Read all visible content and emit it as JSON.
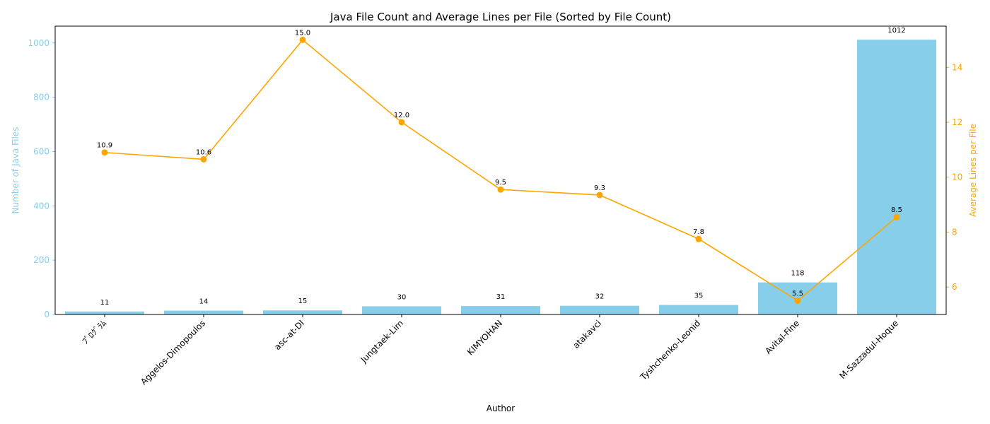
{
  "chart_data": {
    "type": "bar",
    "title": "Java File Count and Average Lines per File (Sorted by File Count)",
    "xlabel": "Author",
    "ylabel_left": "Number of Java Files",
    "ylabel_right": "Average Lines per File",
    "categories": [
      "ﾌﾟﾛｸﾞﾗﾑ",
      "Aggelos-Dimopoulos",
      "asc-at-DI",
      "Jungtaek-Lim",
      "KIMYOHAN",
      "atakavci",
      "Tyshchenko-Leonid",
      "Avital-Fine",
      "M-Sazzadul-Hoque"
    ],
    "series": [
      {
        "kind": "bar",
        "axis": "left",
        "color": "#87ceeb",
        "values": [
          11,
          14,
          15,
          30,
          31,
          32,
          35,
          118,
          1012
        ],
        "labels": [
          "11",
          "14",
          "15",
          "30",
          "31",
          "32",
          "35",
          "118",
          "1012"
        ]
      },
      {
        "kind": "line",
        "axis": "right",
        "color": "#ffa500",
        "values": [
          10.9,
          10.65,
          15.0,
          12.0,
          9.55,
          9.35,
          7.75,
          5.5,
          8.55
        ],
        "labels": [
          "10.9",
          "10.6",
          "15.0",
          "12.0",
          "9.5",
          "9.3",
          "7.8",
          "5.5",
          "8.5"
        ]
      }
    ],
    "ylim_left": [
      0,
      1062
    ],
    "yticks_left": [
      "0",
      "200",
      "400",
      "600",
      "800",
      "1000"
    ],
    "ylim_right": [
      5.0,
      15.5
    ],
    "yticks_right": [
      "6",
      "8",
      "10",
      "12",
      "14"
    ],
    "grid": false,
    "colors": {
      "bar": "#87ceeb",
      "line": "#ffa500",
      "axis": "#000000"
    }
  }
}
